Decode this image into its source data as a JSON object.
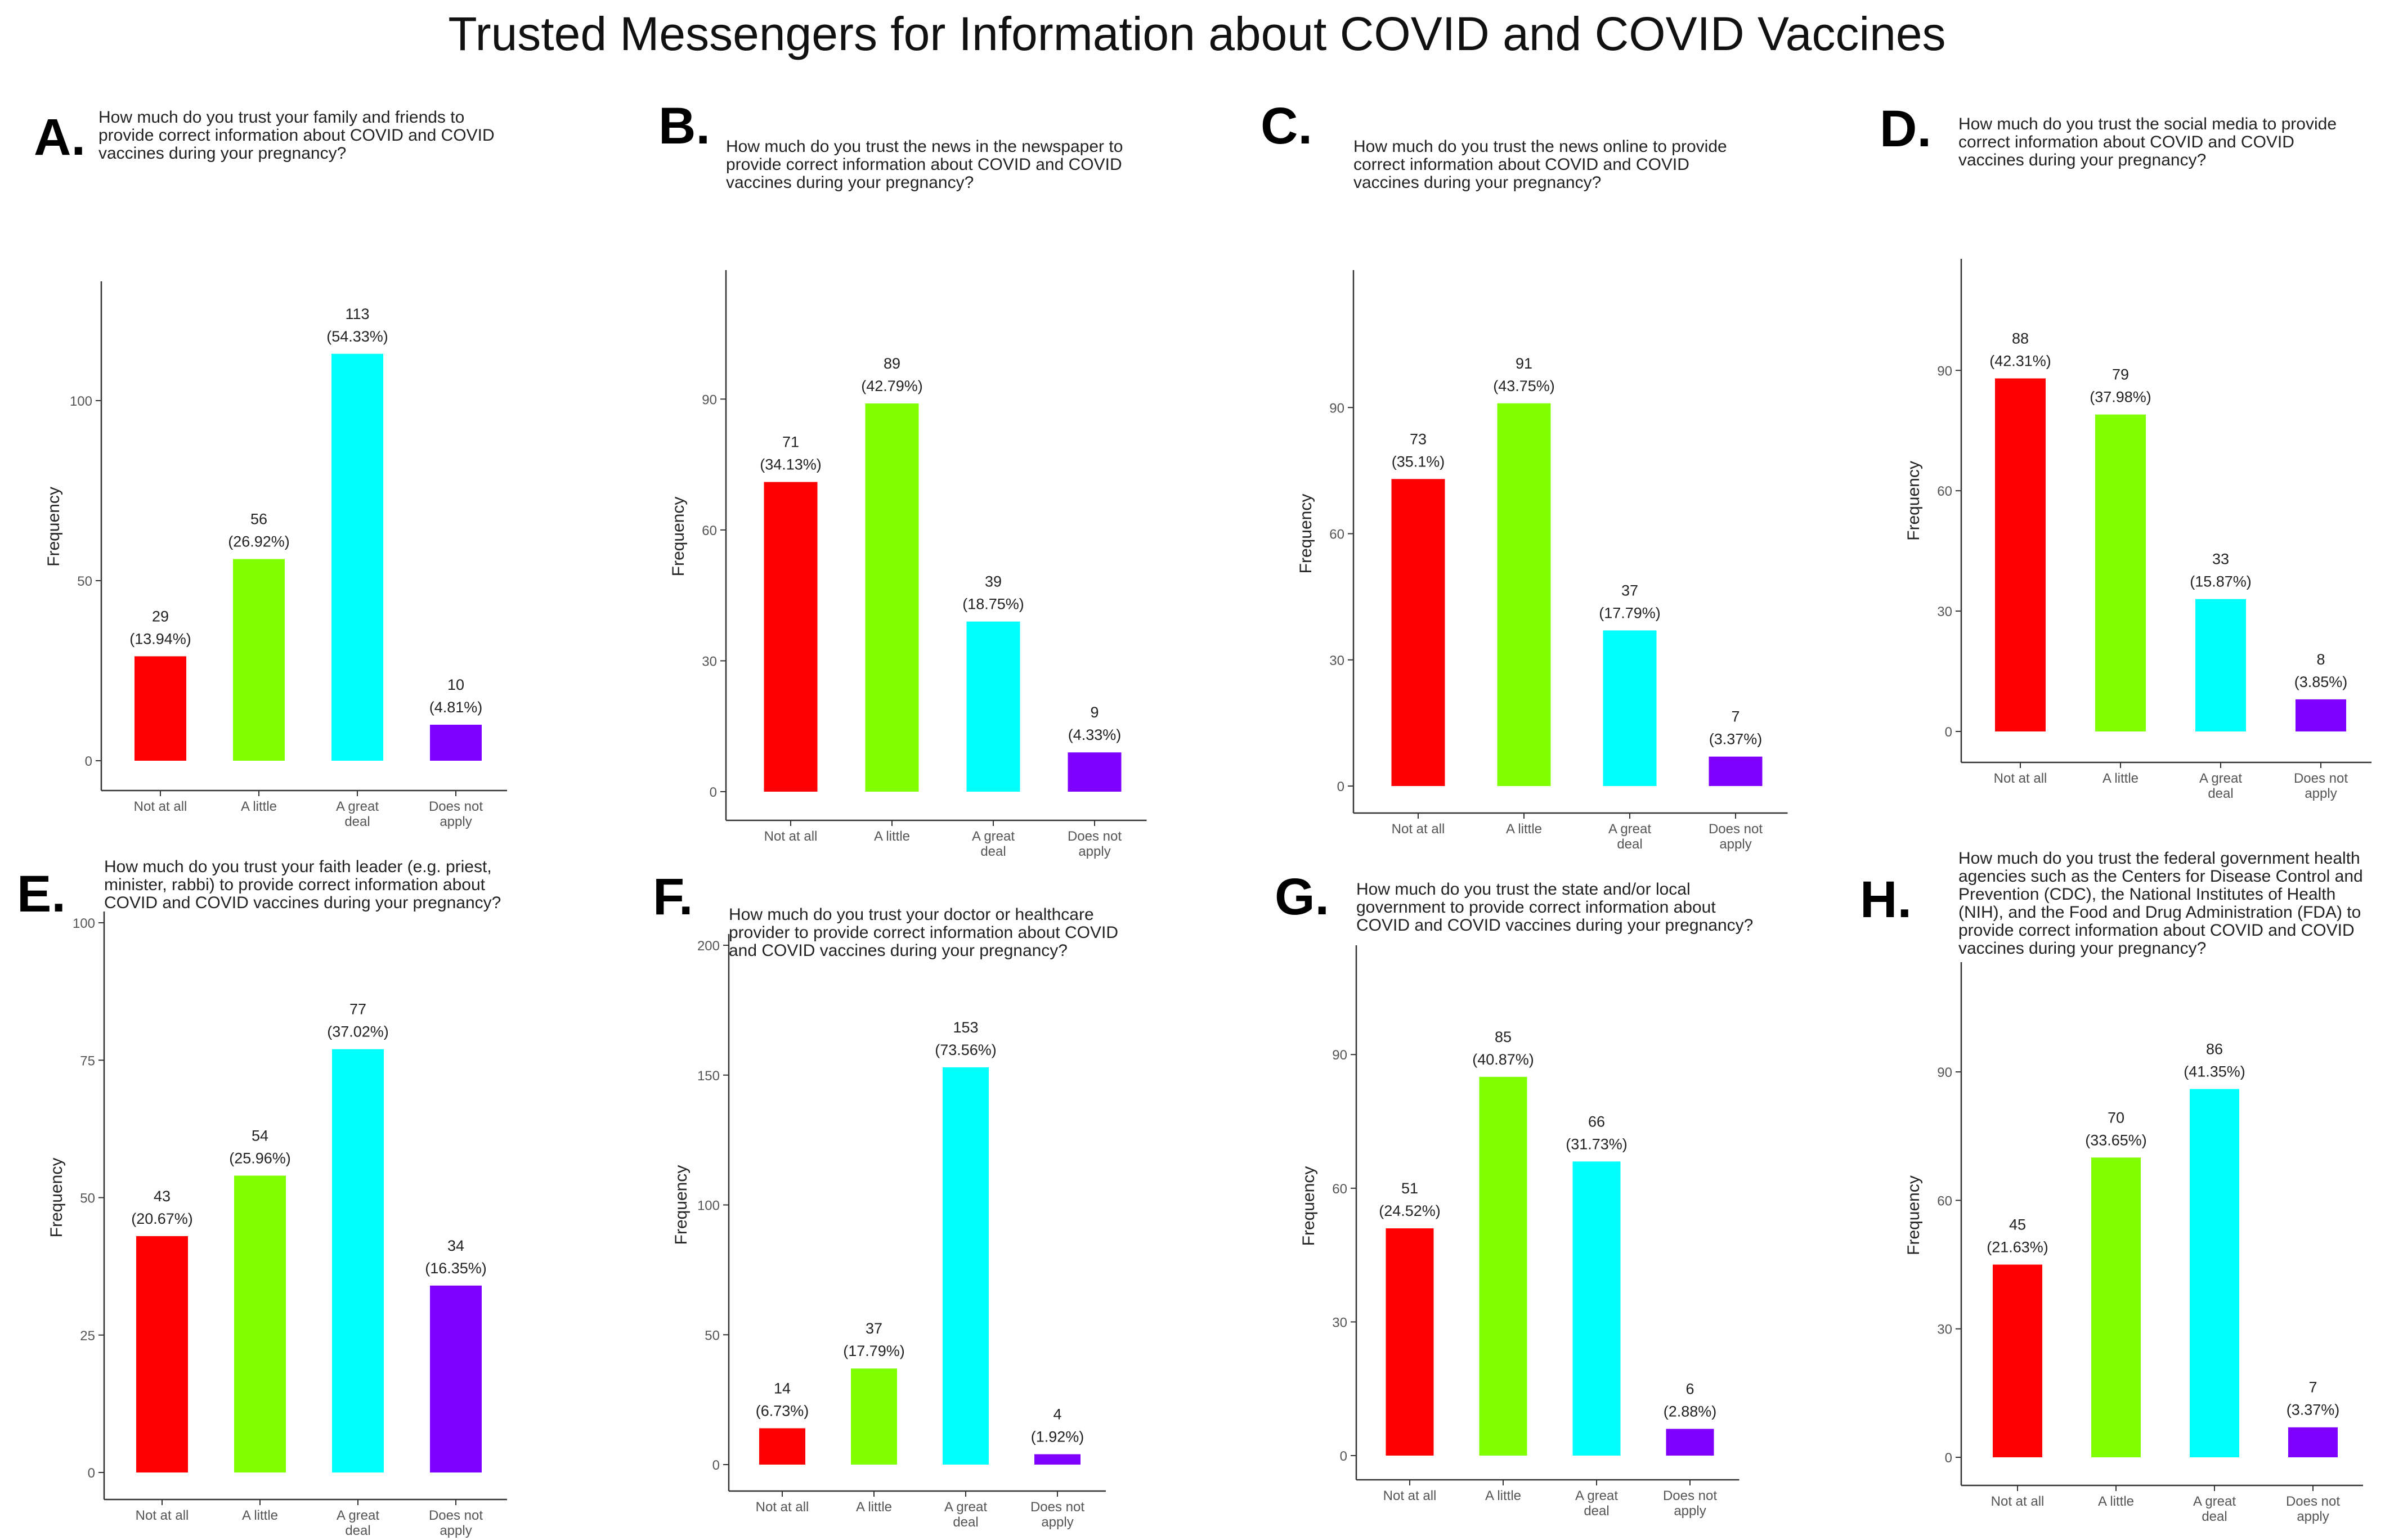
{
  "figure_title": "Trusted Messengers for Information about COVID and COVID Vaccines",
  "colors": {
    "categories": [
      "#ff0000",
      "#80ff00",
      "#00ffff",
      "#8000ff"
    ],
    "axis": "#333333",
    "text": "#222222"
  },
  "chart_data": [
    {
      "panel": "A.",
      "type": "bar",
      "title_lines": [
        "How much do you trust your family and friends to",
        "provide correct information about COVID and COVID",
        "vaccines during your pregnancy?"
      ],
      "ylabel": "Frequency",
      "categories": [
        "Not at all",
        "A little",
        "A great deal",
        "Does not apply"
      ],
      "category_lines": [
        [
          "Not at all"
        ],
        [
          "A little"
        ],
        [
          "A great",
          "deal"
        ],
        [
          "Does not",
          "apply"
        ]
      ],
      "values": [
        29,
        56,
        113,
        10
      ],
      "percent_labels": [
        "(13.94%)",
        "(26.92%)",
        "(54.33%)",
        "(4.81%)"
      ],
      "yticks": [
        0,
        50,
        100
      ],
      "ylim": [
        0,
        130
      ]
    },
    {
      "panel": "B.",
      "type": "bar",
      "title_lines": [
        "How much do you trust the news in the newspaper to",
        "provide correct information about COVID and COVID",
        "vaccines during your pregnancy?"
      ],
      "ylabel": "Frequency",
      "categories": [
        "Not at all",
        "A little",
        "A great deal",
        "Does not apply"
      ],
      "category_lines": [
        [
          "Not at all"
        ],
        [
          "A little"
        ],
        [
          "A great",
          "deal"
        ],
        [
          "Does not",
          "apply"
        ]
      ],
      "values": [
        71,
        89,
        39,
        9
      ],
      "percent_labels": [
        "(34.13%)",
        "(42.79%)",
        "(18.75%)",
        "(4.33%)"
      ],
      "yticks": [
        0,
        30,
        60,
        90
      ],
      "ylim": [
        0,
        117
      ]
    },
    {
      "panel": "C.",
      "type": "bar",
      "title_lines": [
        "How much do you trust the news online to provide",
        "correct information about COVID and COVID",
        "vaccines during your pregnancy?"
      ],
      "ylabel": "Frequency",
      "categories": [
        "Not at all",
        "A little",
        "A great deal",
        "Does not apply"
      ],
      "category_lines": [
        [
          "Not at all"
        ],
        [
          "A little"
        ],
        [
          "A great",
          "deal"
        ],
        [
          "Does not",
          "apply"
        ]
      ],
      "values": [
        73,
        91,
        37,
        7
      ],
      "percent_labels": [
        "(35.1%)",
        "(43.75%)",
        "(17.79%)",
        "(3.37%)"
      ],
      "yticks": [
        0,
        30,
        60,
        90
      ],
      "ylim": [
        0,
        120
      ]
    },
    {
      "panel": "D.",
      "type": "bar",
      "title_lines": [
        "How much do you trust the social media to provide",
        "correct information about COVID and COVID",
        "vaccines during your pregnancy?"
      ],
      "ylabel": "Frequency",
      "categories": [
        "Not at all",
        "A little",
        "A great deal",
        "Does not apply"
      ],
      "category_lines": [
        [
          "Not at all"
        ],
        [
          "A little"
        ],
        [
          "A great",
          "deal"
        ],
        [
          "Does not",
          "apply"
        ]
      ],
      "values": [
        88,
        79,
        33,
        8
      ],
      "percent_labels": [
        "(42.31%)",
        "(37.98%)",
        "(15.87%)",
        "(3.85%)"
      ],
      "yticks": [
        0,
        30,
        60,
        90
      ],
      "ylim": [
        0,
        115
      ]
    },
    {
      "panel": "E.",
      "type": "bar",
      "title_lines": [
        "How much do you trust your faith leader (e.g. priest,",
        "minister, rabbi) to provide correct information about",
        "COVID and COVID vaccines during your pregnancy?"
      ],
      "ylabel": "Frequency",
      "categories": [
        "Not at all",
        "A little",
        "A great deal",
        "Does not apply"
      ],
      "category_lines": [
        [
          "Not at all"
        ],
        [
          "A little"
        ],
        [
          "A great",
          "deal"
        ],
        [
          "Does not",
          "apply"
        ]
      ],
      "values": [
        43,
        54,
        77,
        34
      ],
      "percent_labels": [
        "(20.67%)",
        "(25.96%)",
        "(37.02%)",
        "(16.35%)"
      ],
      "yticks": [
        0,
        25,
        50,
        75,
        100
      ],
      "ylim": [
        0,
        100
      ]
    },
    {
      "panel": "F.",
      "type": "bar",
      "title_lines": [
        "How much do you trust your doctor or healthcare",
        "provider to provide correct information about COVID",
        "and COVID vaccines during your pregnancy?"
      ],
      "ylabel": "Frequency",
      "categories": [
        "Not at all",
        "A little",
        "A great deal",
        "Does not apply"
      ],
      "category_lines": [
        [
          "Not at all"
        ],
        [
          "A little"
        ],
        [
          "A great",
          "deal"
        ],
        [
          "Does not",
          "apply"
        ]
      ],
      "values": [
        14,
        37,
        153,
        4
      ],
      "percent_labels": [
        "(6.73%)",
        "(17.79%)",
        "(73.56%)",
        "(1.92%)"
      ],
      "yticks": [
        0,
        50,
        100,
        150,
        200
      ],
      "ylim": [
        0,
        200
      ]
    },
    {
      "panel": "G.",
      "type": "bar",
      "title_lines": [
        "How much do you trust the state and/or local",
        "government to provide correct information about",
        "COVID and COVID vaccines during your pregnancy?"
      ],
      "ylabel": "Frequency",
      "categories": [
        "Not at all",
        "A little",
        "A great deal",
        "Does not apply"
      ],
      "category_lines": [
        [
          "Not at all"
        ],
        [
          "A little"
        ],
        [
          "A great",
          "deal"
        ],
        [
          "Does not",
          "apply"
        ]
      ],
      "values": [
        51,
        85,
        66,
        6
      ],
      "percent_labels": [
        "(24.52%)",
        "(40.87%)",
        "(31.73%)",
        "(2.88%)"
      ],
      "yticks": [
        0,
        30,
        60,
        90
      ],
      "ylim": [
        0,
        112
      ]
    },
    {
      "panel": "H.",
      "type": "bar",
      "title_lines": [
        "How much do you trust the federal government health",
        "agencies such as the Centers for Disease Control and",
        "Prevention (CDC), the National Institutes of Health",
        "(NIH), and the Food and Drug Administration (FDA) to",
        "provide correct information about COVID and COVID",
        "vaccines during your pregnancy?"
      ],
      "ylabel": "Frequency",
      "categories": [
        "Not at all",
        "A little",
        "A great deal",
        "Does not apply"
      ],
      "category_lines": [
        [
          "Not at all"
        ],
        [
          "A little"
        ],
        [
          "A great",
          "deal"
        ],
        [
          "Does not",
          "apply"
        ]
      ],
      "values": [
        45,
        70,
        86,
        7
      ],
      "percent_labels": [
        "(21.63%)",
        "(33.65%)",
        "(41.35%)",
        "(3.37%)"
      ],
      "yticks": [
        0,
        30,
        60,
        90
      ],
      "ylim": [
        0,
        113
      ]
    }
  ]
}
